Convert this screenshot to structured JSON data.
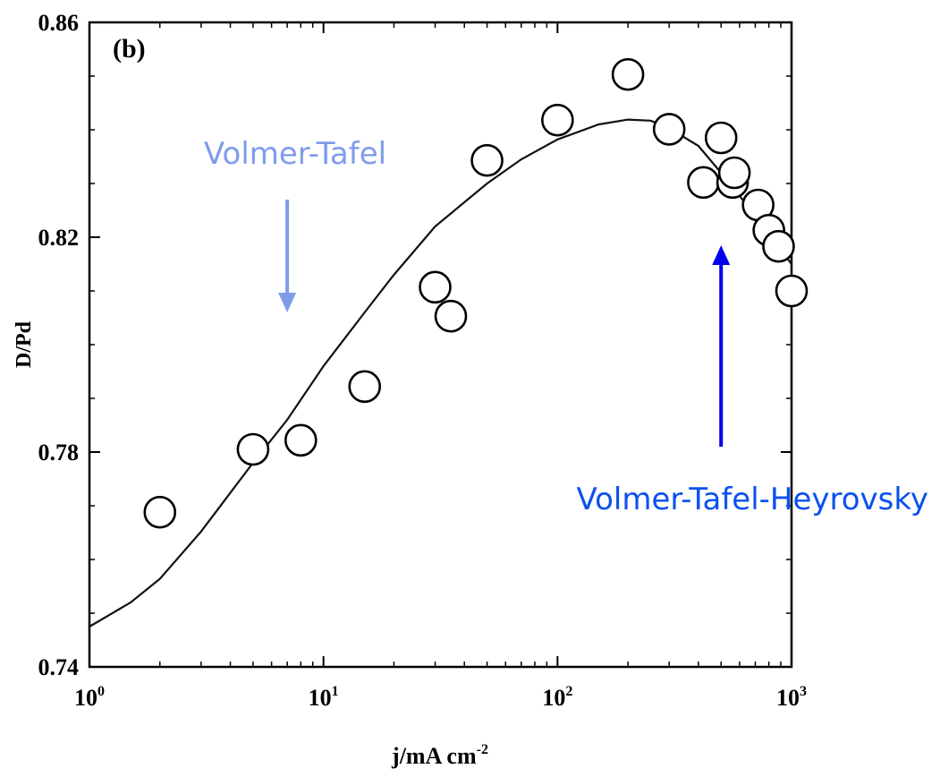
{
  "chart_data": {
    "type": "scatter",
    "panel_label": "(b)",
    "xlabel": "j/mA cm",
    "xlabel_exponent": "-2",
    "ylabel": "D/Pd",
    "x_scale": "log",
    "xlim": [
      1,
      1000
    ],
    "ylim": [
      0.74,
      0.86
    ],
    "x_ticks": [
      {
        "value": 1,
        "base": "10",
        "exp": "0"
      },
      {
        "value": 10,
        "base": "10",
        "exp": "1"
      },
      {
        "value": 100,
        "base": "10",
        "exp": "2"
      },
      {
        "value": 1000,
        "base": "10",
        "exp": "3"
      }
    ],
    "y_ticks": [
      {
        "value": 0.74,
        "label": "0.74"
      },
      {
        "value": 0.78,
        "label": "0.78"
      },
      {
        "value": 0.82,
        "label": "0.82"
      },
      {
        "value": 0.86,
        "label": "0.86"
      }
    ],
    "grid": false,
    "points": [
      {
        "x": 2,
        "y": 0.7688
      },
      {
        "x": 5,
        "y": 0.7805
      },
      {
        "x": 8,
        "y": 0.7822
      },
      {
        "x": 15,
        "y": 0.7922
      },
      {
        "x": 30,
        "y": 0.8107
      },
      {
        "x": 35,
        "y": 0.8053
      },
      {
        "x": 50,
        "y": 0.8343
      },
      {
        "x": 100,
        "y": 0.8418
      },
      {
        "x": 200,
        "y": 0.8503
      },
      {
        "x": 300,
        "y": 0.8401
      },
      {
        "x": 420,
        "y": 0.8302
      },
      {
        "x": 500,
        "y": 0.8385
      },
      {
        "x": 560,
        "y": 0.8302
      },
      {
        "x": 570,
        "y": 0.832
      },
      {
        "x": 720,
        "y": 0.826
      },
      {
        "x": 800,
        "y": 0.8213
      },
      {
        "x": 880,
        "y": 0.8183
      },
      {
        "x": 1000,
        "y": 0.81
      }
    ],
    "fit_curve": [
      {
        "x": 1,
        "y": 0.7475
      },
      {
        "x": 1.5,
        "y": 0.752
      },
      {
        "x": 2,
        "y": 0.7564
      },
      {
        "x": 3,
        "y": 0.7652
      },
      {
        "x": 5,
        "y": 0.778
      },
      {
        "x": 7,
        "y": 0.786
      },
      {
        "x": 10,
        "y": 0.796
      },
      {
        "x": 15,
        "y": 0.806
      },
      {
        "x": 20,
        "y": 0.813
      },
      {
        "x": 30,
        "y": 0.822
      },
      {
        "x": 50,
        "y": 0.83
      },
      {
        "x": 70,
        "y": 0.8345
      },
      {
        "x": 100,
        "y": 0.8382
      },
      {
        "x": 150,
        "y": 0.841
      },
      {
        "x": 200,
        "y": 0.8419
      },
      {
        "x": 250,
        "y": 0.8417
      },
      {
        "x": 300,
        "y": 0.8403
      },
      {
        "x": 400,
        "y": 0.837
      },
      {
        "x": 500,
        "y": 0.832
      },
      {
        "x": 700,
        "y": 0.824
      },
      {
        "x": 1000,
        "y": 0.815
      }
    ],
    "annotations": [
      {
        "id": "vt",
        "text": "Volmer-Tafel",
        "color": "#7f9ceb",
        "arrow": "down",
        "x": 7,
        "y_from": 0.827,
        "y_to": 0.806
      },
      {
        "id": "vth",
        "text": "Volmer-Tafel-Heyrovsky",
        "color": "#0a50f0",
        "arrow_color": "#0000ee",
        "arrow": "up",
        "x": 500,
        "y_from": 0.781,
        "y_to": 0.8185
      }
    ]
  }
}
